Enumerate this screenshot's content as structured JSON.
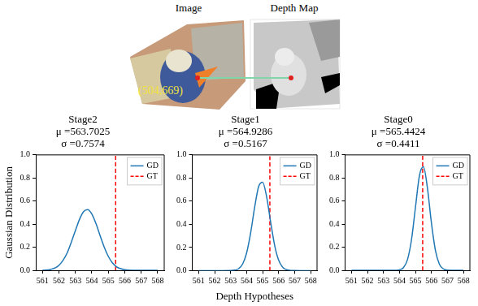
{
  "header": {
    "image_title": "Image",
    "depth_title": "Depth Map",
    "point_label": "(504,669)"
  },
  "chart_data": [
    {
      "type": "line",
      "title": [
        "Stage2",
        "μ =563.7025",
        "σ =0.7574"
      ],
      "x": [
        561,
        561.5,
        562,
        562.5,
        563,
        563.25,
        563.5,
        563.75,
        564,
        564.25,
        564.5,
        564.75,
        565,
        565.25,
        565.5,
        565.75,
        566,
        566.25,
        566.5,
        566.75,
        567,
        567.5,
        568
      ],
      "series": [
        {
          "name": "GD",
          "color": "#1f77b4",
          "values": [
            0.0009,
            0.0077,
            0.0421,
            0.1494,
            0.3426,
            0.4406,
            0.5082,
            0.5257,
            0.4876,
            0.4056,
            0.3026,
            0.2024,
            0.1214,
            0.0653,
            0.0315,
            0.0136,
            0.0053,
            0.0018,
            0.0006,
            0.0002,
            0,
            0,
            0
          ]
        },
        {
          "name": "GT",
          "color": "red",
          "line_style": "dashed",
          "x": [
            565.45,
            565.45
          ],
          "values": [
            0,
            1
          ]
        }
      ],
      "xlim": [
        560.6,
        568.4
      ],
      "xticks": [
        561,
        562,
        563,
        564,
        565,
        566,
        567,
        568
      ],
      "ylim": [
        0,
        1
      ],
      "yticks": [
        {
          "value": 0,
          "label": "0.0"
        },
        0.2,
        0.4,
        0.6,
        0.8,
        {
          "value": 1,
          "label": "1.0"
        }
      ],
      "grid": false,
      "legend": "upper right",
      "y_label": "Gaussian Distribution"
    },
    {
      "type": "line",
      "title": [
        "Stage1",
        "μ =564.9286",
        "σ =0.5167"
      ],
      "x": [
        561,
        561.5,
        562,
        562.5,
        563,
        563.25,
        563.5,
        563.75,
        564,
        564.25,
        564.5,
        564.75,
        565,
        565.25,
        565.5,
        565.75,
        566,
        566.25,
        566.5,
        566.75,
        567,
        567.5,
        568
      ],
      "series": [
        {
          "name": "GD",
          "color": "#1f77b4",
          "values": [
            0,
            0,
            0,
            0,
            0.0007,
            0.0039,
            0.0169,
            0.0573,
            0.1536,
            0.326,
            0.5473,
            0.7273,
            0.7648,
            0.6363,
            0.4189,
            0.2182,
            0.0899,
            0.0293,
            0.0076,
            0.0015,
            0.0003,
            0,
            0
          ]
        },
        {
          "name": "GT",
          "color": "red",
          "line_style": "dashed",
          "x": [
            565.45,
            565.45
          ],
          "values": [
            0,
            1
          ]
        }
      ],
      "xlim": [
        560.6,
        568.4
      ],
      "xticks": [
        561,
        562,
        563,
        564,
        565,
        566,
        567,
        568
      ],
      "ylim": [
        0,
        1
      ],
      "yticks": [
        {
          "value": 0,
          "label": "0.0"
        },
        0.2,
        0.4,
        0.6,
        0.8,
        {
          "value": 1,
          "label": "1.0"
        }
      ],
      "grid": false,
      "legend": "upper right",
      "x_label": "Depth Hypotheses"
    },
    {
      "type": "line",
      "title": [
        "Stage0",
        "μ =565.4424",
        "σ =0.4411"
      ],
      "x": [
        561,
        561.5,
        562,
        562.5,
        563,
        563.25,
        563.5,
        563.75,
        564,
        564.25,
        564.5,
        564.75,
        565,
        565.25,
        565.5,
        565.75,
        566,
        566.25,
        566.5,
        566.75,
        567,
        567.5,
        568
      ],
      "series": [
        {
          "name": "GD",
          "color": "#1f77b4",
          "values": [
            0,
            0,
            0,
            0,
            0,
            0,
            0.0001,
            0.0006,
            0.0043,
            0.0234,
            0.0923,
            0.2638,
            0.5469,
            0.8224,
            0.8967,
            0.7091,
            0.4068,
            0.1692,
            0.0511,
            0.0112,
            0.0018,
            0,
            0
          ]
        },
        {
          "name": "GT",
          "color": "red",
          "line_style": "dashed",
          "x": [
            565.45,
            565.45
          ],
          "values": [
            0,
            1
          ]
        }
      ],
      "xlim": [
        560.6,
        568.4
      ],
      "xticks": [
        561,
        562,
        563,
        564,
        565,
        566,
        567,
        568
      ],
      "ylim": [
        0,
        1
      ],
      "yticks": [
        {
          "value": 0,
          "label": "0.0"
        },
        0.2,
        0.4,
        0.6,
        0.8,
        {
          "value": 1,
          "label": "1.0"
        }
      ],
      "grid": false,
      "legend": "upper right"
    }
  ]
}
